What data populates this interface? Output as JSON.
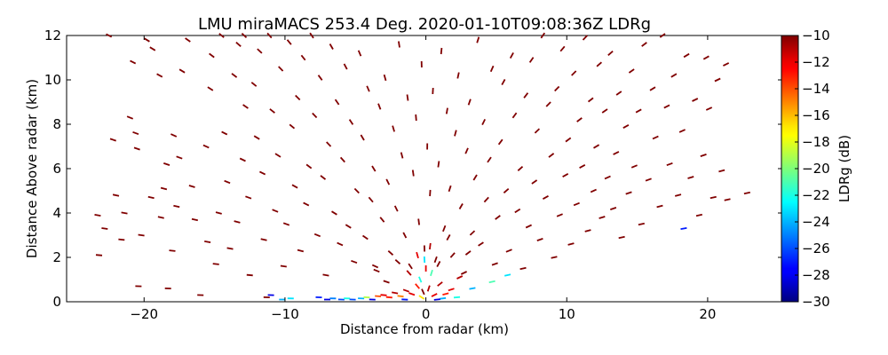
{
  "chart_data": {
    "type": "scatter",
    "title": "LMU miraMACS 253.4 Deg. 2020-01-10T09:08:36Z  LDRg",
    "xlabel": "Distance from radar (km)",
    "ylabel": "Distance Above radar  (km)",
    "xlim": [
      -25.5,
      25.3
    ],
    "ylim": [
      0,
      12
    ],
    "xticks": [
      -20,
      -10,
      0,
      10,
      20
    ],
    "xtick_labels": [
      "−20",
      "−10",
      "0",
      "10",
      "20"
    ],
    "yticks": [
      0,
      2,
      4,
      6,
      8,
      10,
      12
    ],
    "ytick_labels": [
      "0",
      "2",
      "4",
      "6",
      "8",
      "10",
      "12"
    ],
    "grid": false,
    "legend": "none",
    "colorbar": {
      "label": "LDRg (dB)",
      "range": [
        -30,
        -10
      ],
      "ticks": [
        -10,
        -12,
        -14,
        -16,
        -18,
        -20,
        -22,
        -24,
        -26,
        -28,
        -30
      ],
      "tick_labels": [
        "−10",
        "−12",
        "−14",
        "−16",
        "−18",
        "−20",
        "−22",
        "−24",
        "−26",
        "−28",
        "−30"
      ],
      "colormap": "jet"
    },
    "points": [
      {
        "x": -23.3,
        "y": 3.9,
        "v": -10
      },
      {
        "x": -23.2,
        "y": 2.1,
        "v": -10
      },
      {
        "x": -22.8,
        "y": 3.3,
        "v": -10
      },
      {
        "x": -22.2,
        "y": 7.3,
        "v": -10
      },
      {
        "x": -22.0,
        "y": 4.8,
        "v": -10
      },
      {
        "x": -21.6,
        "y": 2.8,
        "v": -10
      },
      {
        "x": -21.4,
        "y": 4.0,
        "v": -10
      },
      {
        "x": -21.0,
        "y": 8.3,
        "v": -10
      },
      {
        "x": -20.8,
        "y": 10.8,
        "v": -10
      },
      {
        "x": -20.6,
        "y": 7.6,
        "v": -10
      },
      {
        "x": -20.5,
        "y": 6.9,
        "v": -10
      },
      {
        "x": -20.4,
        "y": 0.7,
        "v": -10
      },
      {
        "x": -20.2,
        "y": 3.0,
        "v": -10
      },
      {
        "x": -19.5,
        "y": 4.7,
        "v": -10
      },
      {
        "x": -19.4,
        "y": 11.4,
        "v": -10
      },
      {
        "x": -18.9,
        "y": 10.2,
        "v": -10
      },
      {
        "x": -18.8,
        "y": 3.8,
        "v": -10
      },
      {
        "x": -18.6,
        "y": 5.1,
        "v": -10
      },
      {
        "x": -18.4,
        "y": 6.2,
        "v": -10
      },
      {
        "x": -18.3,
        "y": 0.6,
        "v": -10
      },
      {
        "x": -18.0,
        "y": 2.3,
        "v": -10
      },
      {
        "x": -17.9,
        "y": 7.5,
        "v": -10
      },
      {
        "x": -17.7,
        "y": 4.3,
        "v": -10
      },
      {
        "x": -17.5,
        "y": 6.5,
        "v": -10
      },
      {
        "x": -17.3,
        "y": 10.4,
        "v": -10
      },
      {
        "x": -16.9,
        "y": 11.8,
        "v": -10
      },
      {
        "x": -16.6,
        "y": 5.2,
        "v": -10
      },
      {
        "x": -16.4,
        "y": 3.7,
        "v": -10
      },
      {
        "x": -16.0,
        "y": 0.3,
        "v": -10
      },
      {
        "x": -15.6,
        "y": 7.0,
        "v": -10
      },
      {
        "x": -15.5,
        "y": 2.7,
        "v": -10
      },
      {
        "x": -15.3,
        "y": 9.6,
        "v": -10
      },
      {
        "x": -15.2,
        "y": 11.1,
        "v": -10
      },
      {
        "x": -14.9,
        "y": 1.7,
        "v": -10
      },
      {
        "x": -14.7,
        "y": 4.0,
        "v": -10
      },
      {
        "x": -14.5,
        "y": 12.0,
        "v": -10
      },
      {
        "x": -14.3,
        "y": 7.6,
        "v": -10
      },
      {
        "x": -14.1,
        "y": 5.4,
        "v": -10
      },
      {
        "x": -13.9,
        "y": 2.4,
        "v": -10
      },
      {
        "x": -13.6,
        "y": 10.2,
        "v": -10
      },
      {
        "x": -13.4,
        "y": 3.6,
        "v": -10
      },
      {
        "x": -13.3,
        "y": 11.6,
        "v": -10
      },
      {
        "x": -13.0,
        "y": 6.4,
        "v": -10
      },
      {
        "x": -12.8,
        "y": 8.8,
        "v": -10
      },
      {
        "x": -12.6,
        "y": 4.7,
        "v": -10
      },
      {
        "x": -12.5,
        "y": 1.2,
        "v": -10
      },
      {
        "x": -12.2,
        "y": 9.8,
        "v": -10
      },
      {
        "x": -12.0,
        "y": 7.4,
        "v": -10
      },
      {
        "x": -11.8,
        "y": 11.3,
        "v": -10
      },
      {
        "x": -11.6,
        "y": 5.8,
        "v": -10
      },
      {
        "x": -11.5,
        "y": 2.8,
        "v": -10
      },
      {
        "x": -11.3,
        "y": 0.2,
        "v": -10
      },
      {
        "x": -11.1,
        "y": 12.0,
        "v": -10
      },
      {
        "x": -10.9,
        "y": 8.6,
        "v": -10
      },
      {
        "x": -10.7,
        "y": 4.1,
        "v": -10
      },
      {
        "x": -10.5,
        "y": 6.6,
        "v": -10
      },
      {
        "x": -10.3,
        "y": 10.5,
        "v": -10
      },
      {
        "x": -10.1,
        "y": 1.6,
        "v": -10
      },
      {
        "x": -9.9,
        "y": 3.5,
        "v": -10
      },
      {
        "x": -9.7,
        "y": 11.7,
        "v": -10
      },
      {
        "x": -9.5,
        "y": 7.9,
        "v": -10
      },
      {
        "x": -9.3,
        "y": 5.2,
        "v": -10
      },
      {
        "x": -9.1,
        "y": 9.2,
        "v": -10
      },
      {
        "x": -8.9,
        "y": 2.3,
        "v": -10
      },
      {
        "x": -8.7,
        "y": 11.0,
        "v": -10
      },
      {
        "x": -8.5,
        "y": 4.4,
        "v": -10
      },
      {
        "x": -8.3,
        "y": 6.1,
        "v": -10
      },
      {
        "x": -8.1,
        "y": 12.0,
        "v": -10
      },
      {
        "x": -7.9,
        "y": 8.4,
        "v": -10
      },
      {
        "x": -7.7,
        "y": 3.0,
        "v": -10
      },
      {
        "x": -7.5,
        "y": 10.1,
        "v": -10
      },
      {
        "x": -7.3,
        "y": 5.6,
        "v": -10
      },
      {
        "x": -7.1,
        "y": 1.2,
        "v": -10
      },
      {
        "x": -6.9,
        "y": 7.1,
        "v": -10
      },
      {
        "x": -6.7,
        "y": 11.5,
        "v": -10
      },
      {
        "x": -6.5,
        "y": 4.0,
        "v": -10
      },
      {
        "x": -6.3,
        "y": 9.0,
        "v": -10
      },
      {
        "x": -6.1,
        "y": 2.6,
        "v": -10
      },
      {
        "x": -5.9,
        "y": 6.4,
        "v": -10
      },
      {
        "x": -5.7,
        "y": 10.6,
        "v": -10
      },
      {
        "x": -5.5,
        "y": 3.4,
        "v": -10
      },
      {
        "x": -5.3,
        "y": 8.1,
        "v": -10
      },
      {
        "x": -5.1,
        "y": 1.8,
        "v": -10
      },
      {
        "x": -4.9,
        "y": 5.0,
        "v": -10
      },
      {
        "x": -4.7,
        "y": 11.2,
        "v": -10
      },
      {
        "x": -4.5,
        "y": 7.4,
        "v": -10
      },
      {
        "x": -4.3,
        "y": 2.9,
        "v": -10
      },
      {
        "x": -4.1,
        "y": 9.6,
        "v": -10
      },
      {
        "x": -3.9,
        "y": 4.6,
        "v": -10
      },
      {
        "x": -3.7,
        "y": 6.0,
        "v": -10
      },
      {
        "x": -3.5,
        "y": 1.4,
        "v": -10
      },
      {
        "x": -3.3,
        "y": 8.8,
        "v": -10
      },
      {
        "x": -3.1,
        "y": 3.7,
        "v": -10
      },
      {
        "x": -2.9,
        "y": 10.1,
        "v": -10
      },
      {
        "x": -2.7,
        "y": 5.4,
        "v": -10
      },
      {
        "x": -2.5,
        "y": 2.2,
        "v": -10
      },
      {
        "x": -2.3,
        "y": 7.8,
        "v": -10
      },
      {
        "x": -2.1,
        "y": 4.2,
        "v": -10
      },
      {
        "x": -1.9,
        "y": 11.6,
        "v": -10
      },
      {
        "x": -1.7,
        "y": 6.6,
        "v": -10
      },
      {
        "x": -1.5,
        "y": 3.0,
        "v": -10
      },
      {
        "x": -1.3,
        "y": 9.2,
        "v": -10
      },
      {
        "x": -1.1,
        "y": 1.6,
        "v": -10
      },
      {
        "x": -0.9,
        "y": 5.8,
        "v": -10
      },
      {
        "x": -0.7,
        "y": 8.3,
        "v": -10
      },
      {
        "x": -0.5,
        "y": 3.6,
        "v": -10
      },
      {
        "x": -0.3,
        "y": 10.7,
        "v": -10
      },
      {
        "x": -0.1,
        "y": 2.4,
        "v": -10
      },
      {
        "x": 0.1,
        "y": 7.0,
        "v": -10
      },
      {
        "x": 0.3,
        "y": 4.9,
        "v": -10
      },
      {
        "x": 0.5,
        "y": 9.5,
        "v": -10
      },
      {
        "x": 0.7,
        "y": 1.9,
        "v": -10
      },
      {
        "x": 0.9,
        "y": 6.2,
        "v": -10
      },
      {
        "x": 1.1,
        "y": 11.3,
        "v": -10
      },
      {
        "x": 1.3,
        "y": 3.3,
        "v": -10
      },
      {
        "x": 1.5,
        "y": 8.6,
        "v": -10
      },
      {
        "x": 1.7,
        "y": 5.1,
        "v": -10
      },
      {
        "x": 1.9,
        "y": 2.1,
        "v": -10
      },
      {
        "x": 2.1,
        "y": 7.6,
        "v": -10
      },
      {
        "x": 2.3,
        "y": 10.2,
        "v": -10
      },
      {
        "x": 2.5,
        "y": 4.3,
        "v": -10
      },
      {
        "x": 2.7,
        "y": 1.3,
        "v": -10
      },
      {
        "x": 2.9,
        "y": 6.8,
        "v": -10
      },
      {
        "x": 3.1,
        "y": 9.0,
        "v": -10
      },
      {
        "x": 3.3,
        "y": 3.1,
        "v": -10
      },
      {
        "x": 3.5,
        "y": 5.6,
        "v": -10
      },
      {
        "x": 3.7,
        "y": 11.8,
        "v": -10
      },
      {
        "x": 3.9,
        "y": 2.6,
        "v": -10
      },
      {
        "x": 4.1,
        "y": 8.1,
        "v": -10
      },
      {
        "x": 4.3,
        "y": 4.6,
        "v": -10
      },
      {
        "x": 4.5,
        "y": 6.4,
        "v": -10
      },
      {
        "x": 4.7,
        "y": 10.5,
        "v": -10
      },
      {
        "x": 4.9,
        "y": 1.7,
        "v": -10
      },
      {
        "x": 5.1,
        "y": 3.8,
        "v": -10
      },
      {
        "x": 5.3,
        "y": 7.2,
        "v": -10
      },
      {
        "x": 5.5,
        "y": 9.9,
        "v": -10
      },
      {
        "x": 5.7,
        "y": 5.0,
        "v": -10
      },
      {
        "x": 5.9,
        "y": 2.3,
        "v": -10
      },
      {
        "x": 6.1,
        "y": 11.1,
        "v": -10
      },
      {
        "x": 6.3,
        "y": 8.4,
        "v": -10
      },
      {
        "x": 6.5,
        "y": 4.1,
        "v": -10
      },
      {
        "x": 6.7,
        "y": 6.0,
        "v": -10
      },
      {
        "x": 6.9,
        "y": 1.5,
        "v": -10
      },
      {
        "x": 7.1,
        "y": 9.3,
        "v": -10
      },
      {
        "x": 7.3,
        "y": 3.4,
        "v": -10
      },
      {
        "x": 7.5,
        "y": 10.9,
        "v": -10
      },
      {
        "x": 7.7,
        "y": 5.4,
        "v": -10
      },
      {
        "x": 7.9,
        "y": 7.7,
        "v": -10
      },
      {
        "x": 8.1,
        "y": 2.8,
        "v": -10
      },
      {
        "x": 8.3,
        "y": 12.0,
        "v": -10
      },
      {
        "x": 8.5,
        "y": 4.7,
        "v": -10
      },
      {
        "x": 8.7,
        "y": 8.9,
        "v": -10
      },
      {
        "x": 8.9,
        "y": 6.6,
        "v": -10
      },
      {
        "x": 9.1,
        "y": 2.0,
        "v": -10
      },
      {
        "x": 9.3,
        "y": 9.6,
        "v": -10
      },
      {
        "x": 9.5,
        "y": 3.9,
        "v": -10
      },
      {
        "x": 9.7,
        "y": 11.4,
        "v": -10
      },
      {
        "x": 9.9,
        "y": 5.7,
        "v": -10
      },
      {
        "x": 10.1,
        "y": 7.3,
        "v": -10
      },
      {
        "x": 10.3,
        "y": 2.6,
        "v": -10
      },
      {
        "x": 10.5,
        "y": 10.3,
        "v": -10
      },
      {
        "x": 10.7,
        "y": 4.4,
        "v": -10
      },
      {
        "x": 10.9,
        "y": 8.2,
        "v": -10
      },
      {
        "x": 11.1,
        "y": 6.1,
        "v": -10
      },
      {
        "x": 11.3,
        "y": 11.9,
        "v": -10
      },
      {
        "x": 11.5,
        "y": 3.2,
        "v": -10
      },
      {
        "x": 11.7,
        "y": 9.1,
        "v": -10
      },
      {
        "x": 11.9,
        "y": 5.0,
        "v": -10
      },
      {
        "x": 12.1,
        "y": 7.0,
        "v": -10
      },
      {
        "x": 12.3,
        "y": 10.7,
        "v": -10
      },
      {
        "x": 12.5,
        "y": 3.8,
        "v": -10
      },
      {
        "x": 12.7,
        "y": 8.6,
        "v": -10
      },
      {
        "x": 12.9,
        "y": 5.6,
        "v": -10
      },
      {
        "x": 13.1,
        "y": 11.2,
        "v": -10
      },
      {
        "x": 13.3,
        "y": 4.2,
        "v": -10
      },
      {
        "x": 13.5,
        "y": 6.7,
        "v": -10
      },
      {
        "x": 13.7,
        "y": 9.4,
        "v": -10
      },
      {
        "x": 13.9,
        "y": 2.9,
        "v": -10
      },
      {
        "x": 14.2,
        "y": 7.9,
        "v": -10
      },
      {
        "x": 14.4,
        "y": 4.9,
        "v": -10
      },
      {
        "x": 14.6,
        "y": 10.4,
        "v": -10
      },
      {
        "x": 14.8,
        "y": 6.1,
        "v": -10
      },
      {
        "x": 15.1,
        "y": 8.6,
        "v": -10
      },
      {
        "x": 15.3,
        "y": 3.5,
        "v": -10
      },
      {
        "x": 15.5,
        "y": 11.6,
        "v": -10
      },
      {
        "x": 15.8,
        "y": 5.5,
        "v": -10
      },
      {
        "x": 16.1,
        "y": 9.6,
        "v": -10
      },
      {
        "x": 16.3,
        "y": 7.4,
        "v": -10
      },
      {
        "x": 16.6,
        "y": 4.3,
        "v": -10
      },
      {
        "x": 16.8,
        "y": 12.0,
        "v": -10
      },
      {
        "x": 17.1,
        "y": 8.8,
        "v": -10
      },
      {
        "x": 17.3,
        "y": 6.2,
        "v": -10
      },
      {
        "x": 17.6,
        "y": 10.2,
        "v": -10
      },
      {
        "x": 17.9,
        "y": 4.8,
        "v": -10
      },
      {
        "x": 18.2,
        "y": 7.7,
        "v": -10
      },
      {
        "x": 18.5,
        "y": 11.1,
        "v": -10
      },
      {
        "x": 18.8,
        "y": 5.6,
        "v": -10
      },
      {
        "x": 19.1,
        "y": 9.1,
        "v": -10
      },
      {
        "x": 19.4,
        "y": 3.9,
        "v": -10
      },
      {
        "x": 19.7,
        "y": 6.6,
        "v": -10
      },
      {
        "x": 19.9,
        "y": 11.0,
        "v": -10
      },
      {
        "x": 20.1,
        "y": 8.7,
        "v": -10
      },
      {
        "x": 20.4,
        "y": 4.7,
        "v": -10
      },
      {
        "x": 20.7,
        "y": 10.0,
        "v": -10
      },
      {
        "x": 21.0,
        "y": 5.9,
        "v": -10
      },
      {
        "x": 21.3,
        "y": 10.7,
        "v": -10
      },
      {
        "x": 21.4,
        "y": 4.6,
        "v": -10
      },
      {
        "x": 22.8,
        "y": 4.9,
        "v": -10
      },
      {
        "x": -22.5,
        "y": 12.0,
        "v": -10
      },
      {
        "x": -19.8,
        "y": 11.8,
        "v": -10
      },
      {
        "x": -12.9,
        "y": 12.0,
        "v": -10
      },
      {
        "x": 18.3,
        "y": 3.3,
        "v": -27
      },
      {
        "x": -11.0,
        "y": 0.3,
        "v": -28
      },
      {
        "x": -10.2,
        "y": 0.1,
        "v": -24
      },
      {
        "x": -9.6,
        "y": 0.15,
        "v": -23
      },
      {
        "x": -7.6,
        "y": 0.2,
        "v": -27
      },
      {
        "x": -7.0,
        "y": 0.1,
        "v": -28
      },
      {
        "x": -6.6,
        "y": 0.15,
        "v": -25
      },
      {
        "x": -6.0,
        "y": 0.1,
        "v": -26
      },
      {
        "x": -5.6,
        "y": 0.15,
        "v": -22
      },
      {
        "x": -5.2,
        "y": 0.1,
        "v": -26
      },
      {
        "x": -4.6,
        "y": 0.15,
        "v": -24
      },
      {
        "x": -4.2,
        "y": 0.2,
        "v": -19
      },
      {
        "x": -3.8,
        "y": 0.1,
        "v": -28
      },
      {
        "x": -3.4,
        "y": 0.25,
        "v": -14
      },
      {
        "x": -3.0,
        "y": 0.3,
        "v": -12
      },
      {
        "x": -2.6,
        "y": 0.2,
        "v": -13
      },
      {
        "x": -2.2,
        "y": 0.4,
        "v": -11
      },
      {
        "x": -1.8,
        "y": 0.25,
        "v": -15
      },
      {
        "x": -1.4,
        "y": 0.5,
        "v": -11
      },
      {
        "x": -1.0,
        "y": 0.35,
        "v": -12
      },
      {
        "x": -0.6,
        "y": 0.7,
        "v": -13
      },
      {
        "x": -0.2,
        "y": 0.45,
        "v": -10
      },
      {
        "x": 0.2,
        "y": 0.6,
        "v": -11
      },
      {
        "x": 0.6,
        "y": 0.3,
        "v": -12
      },
      {
        "x": 1.0,
        "y": 0.8,
        "v": -11
      },
      {
        "x": 1.4,
        "y": 0.35,
        "v": -13
      },
      {
        "x": 1.8,
        "y": 0.55,
        "v": -12
      },
      {
        "x": -0.4,
        "y": 1.0,
        "v": -22
      },
      {
        "x": -0.1,
        "y": 1.9,
        "v": -23
      },
      {
        "x": 0.4,
        "y": 1.3,
        "v": -21
      },
      {
        "x": 1.2,
        "y": 0.15,
        "v": -24
      },
      {
        "x": 2.2,
        "y": 0.2,
        "v": -22
      },
      {
        "x": 3.3,
        "y": 0.6,
        "v": -24
      },
      {
        "x": 4.7,
        "y": 0.9,
        "v": -21
      },
      {
        "x": 5.8,
        "y": 1.2,
        "v": -23
      },
      {
        "x": -1.5,
        "y": 0.1,
        "v": -27
      },
      {
        "x": 0.8,
        "y": 0.1,
        "v": -28
      },
      {
        "x": -0.3,
        "y": 0.2,
        "v": -17
      },
      {
        "x": 0.0,
        "y": 1.5,
        "v": -12
      },
      {
        "x": 0.3,
        "y": 2.5,
        "v": -11
      },
      {
        "x": -0.6,
        "y": 2.1,
        "v": -12
      },
      {
        "x": 0.9,
        "y": 1.7,
        "v": -10
      },
      {
        "x": -1.2,
        "y": 1.3,
        "v": -11
      },
      {
        "x": 1.6,
        "y": 2.9,
        "v": -10
      },
      {
        "x": -2.0,
        "y": 1.8,
        "v": -10
      },
      {
        "x": 2.4,
        "y": 1.1,
        "v": -11
      },
      {
        "x": -2.8,
        "y": 0.9,
        "v": -10
      },
      {
        "x": 3.0,
        "y": 2.2,
        "v": -10
      },
      {
        "x": -3.6,
        "y": 1.6,
        "v": -10
      }
    ]
  }
}
